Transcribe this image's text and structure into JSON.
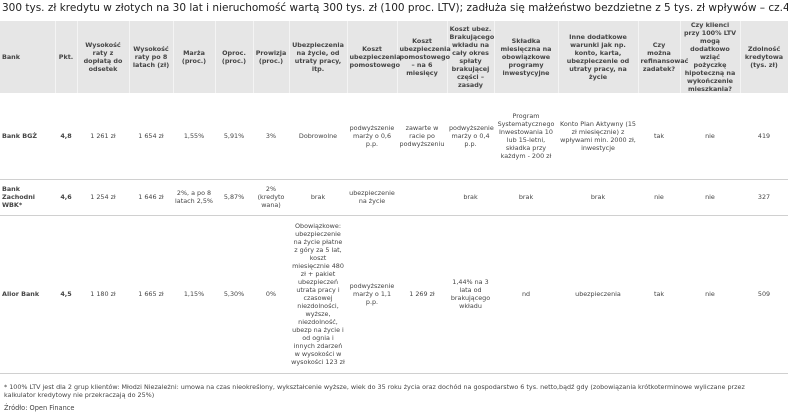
{
  "title": "300 tys. zł kredytu w złotych na 30 lat i nieruchomość wartą 300 tys. zł (100 proc. LTV); zadłuża się małżeństwo bezdzietne z 5 tys. zł wpływów – cz.4",
  "table": {
    "header": [
      "Bank",
      "Pkt.",
      "Wysokość raty z dopłatą do odsetek",
      "Wysokość raty po 8 latach (zł)",
      "Marża (proc.)",
      "Oproc. (proc.)",
      "Prowizja (proc.)",
      "Ubezpieczenia na życie, od utraty pracy, itp.",
      "Koszt ubezpieczenia pomostowego",
      "Koszt ubezpieczenia pomostowego – na 6 miesięcy",
      "Koszt ubez. Brakującego wkładu na cały okres spłaty brakującej części – zasady",
      "Składka miesięczna na obowiązkowe programy inwestycyjne",
      "Inne dodatkowe warunki jak np. konto, karta, ubezpieczenie od utraty pracy, na życie",
      "Czy można refinansować zadatek?",
      "Czy klienci przy 100% LTV mogą dodatkowo wziąć pożyczkę hipoteczną na wykończenie mieszkania?",
      "Zdolność kredytowa (tys. zł)"
    ],
    "rows": [
      [
        "Bank BGŻ",
        "4,8",
        "1 261 zł",
        "1 654 zł",
        "1,55%",
        "5,91%",
        "3%",
        "Dobrowolne",
        "podwyższenie marży o 0,6 p.p.",
        "zawarte w racie po podwyższeniu",
        "podwyższenie marży o 0,4 p.p.",
        "Program Systematycznego Inwestowania 10 lub 15-letni, składka przy każdym - 200 zł",
        "Konto Plan Aktywny (15 zł miesięcznie) z wpływami min. 2000 zł, inwestycje",
        "tak",
        "nie",
        "419"
      ],
      [
        "Bank Zachodni WBK*",
        "4,6",
        "1 254 zł",
        "1 646 zł",
        "2%, a po 8 latach 2,5%",
        "5,87%",
        "2% (kredyto wana)",
        "brak",
        "ubezpieczenie na życie",
        null,
        "brak",
        "brak",
        "brak",
        "nie",
        "nie",
        "327"
      ],
      [
        "Alior Bank",
        "4,5",
        "1 180 zł",
        "1 665 zł",
        "1,15%",
        "5,30%",
        "0%",
        "Obowiązkowe: ubezpieczenie na życie płatne z góry za 5 lat, koszt miesięcznie 480 zł + pakiet ubezpieczeń utrata pracy i czasowej niezdolności, wyższe, niezdolność, ubezp na życie i od ognia i innych zdarzeń w wysokości w wysokości 123 zł",
        "podwyższenie marży o 1,1 p.p.",
        "1 269 zł",
        "1,44% na 3 lata od brakującego wkładu",
        "nd",
        "ubezpieczenia",
        "tak",
        "nie",
        "509"
      ]
    ]
  },
  "footnote": "* 100% LTV jest dla 2 grup klientów: Młodzi Niezależni: umowa na czas nieokreślony, wykształcenie wyższe, wiek do 35 roku życia oraz dochód na gospodarstwo 6 tys. netto,bądź gdy (zobowiązania krótkoterminowe wyliczane przez kalkulator kredytowy nie przekraczają do 25%)",
  "source": "Źródło: Open Finance"
}
